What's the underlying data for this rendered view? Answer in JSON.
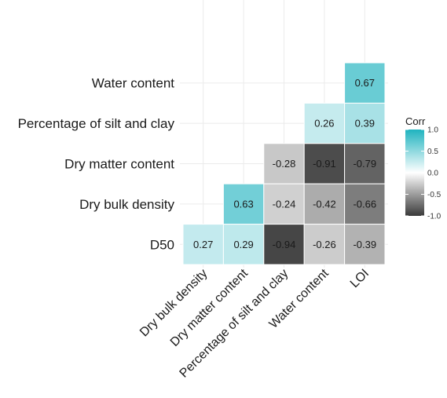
{
  "chart_data": {
    "type": "heatmap",
    "row_labels": [
      "Water content",
      "Percentage of silt and clay",
      "Dry matter content",
      "Dry bulk density",
      "D50"
    ],
    "col_labels": [
      "Dry bulk density",
      "Dry matter content",
      "Percentage of silt and clay",
      "Water content",
      "LOI"
    ],
    "cells": [
      {
        "row": "Water content",
        "col": "LOI",
        "value": 0.67,
        "label": "0.67"
      },
      {
        "row": "Percentage of silt and clay",
        "col": "Water content",
        "value": 0.26,
        "label": "0.26"
      },
      {
        "row": "Percentage of silt and clay",
        "col": "LOI",
        "value": 0.39,
        "label": "0.39"
      },
      {
        "row": "Dry matter content",
        "col": "Percentage of silt and clay",
        "value": -0.28,
        "label": "-0.28"
      },
      {
        "row": "Dry matter content",
        "col": "Water content",
        "value": -0.91,
        "label": "-0.91"
      },
      {
        "row": "Dry matter content",
        "col": "LOI",
        "value": -0.79,
        "label": "-0.79"
      },
      {
        "row": "Dry bulk density",
        "col": "Dry matter content",
        "value": 0.63,
        "label": "0.63"
      },
      {
        "row": "Dry bulk density",
        "col": "Percentage of silt and clay",
        "value": -0.24,
        "label": "-0.24"
      },
      {
        "row": "Dry bulk density",
        "col": "Water content",
        "value": -0.42,
        "label": "-0.42"
      },
      {
        "row": "Dry bulk density",
        "col": "LOI",
        "value": -0.66,
        "label": "-0.66"
      },
      {
        "row": "D50",
        "col": "Dry bulk density",
        "value": 0.27,
        "label": "0.27"
      },
      {
        "row": "D50",
        "col": "Dry matter content",
        "value": 0.29,
        "label": "0.29"
      },
      {
        "row": "D50",
        "col": "Percentage of silt and clay",
        "value": -0.94,
        "label": "-0.94"
      },
      {
        "row": "D50",
        "col": "Water content",
        "value": -0.26,
        "label": "-0.26"
      },
      {
        "row": "D50",
        "col": "LOI",
        "value": -0.39,
        "label": "-0.39"
      }
    ],
    "legend": {
      "title": "Corr",
      "ticks": [
        "1.0",
        "0.5",
        "0.0",
        "-0.5",
        "-1.0"
      ],
      "tick_values": [
        1.0,
        0.5,
        0.0,
        -0.5,
        -1.0
      ],
      "range": [
        -1,
        1
      ],
      "placement": "right"
    },
    "colors": {
      "high": "#1fb3bf",
      "mid": "#ffffff",
      "low": "#3a3a3a",
      "grid": "#ebebeb"
    },
    "grid": true
  }
}
